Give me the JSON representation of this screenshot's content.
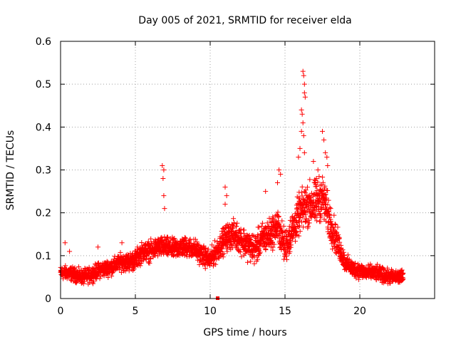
{
  "chart_data": {
    "type": "scatter",
    "title": "Day 005 of 2021, SRMTID for receiver elda",
    "xlabel": "GPS time / hours",
    "ylabel": "SRMTID / TECUs",
    "xlim": [
      0,
      25
    ],
    "ylim": [
      0,
      0.6
    ],
    "xticks": [
      0,
      5,
      10,
      15,
      20
    ],
    "yticks": [
      0,
      0.1,
      0.2,
      0.3,
      0.4,
      0.5,
      0.6
    ],
    "xtick_labels": [
      "0",
      "5",
      "10",
      "15",
      "20"
    ],
    "ytick_labels": [
      "0",
      "0.1",
      "0.2",
      "0.3",
      "0.4",
      "0.5",
      "0.6"
    ],
    "grid": true,
    "marker": "plus",
    "color": "#ff0000",
    "time_range_hours": [
      0,
      22.9
    ],
    "sample_interval_hours": 0.0083,
    "trend": [
      [
        0,
        0.06
      ],
      [
        0.5,
        0.06
      ],
      [
        1,
        0.055
      ],
      [
        1.5,
        0.05
      ],
      [
        2,
        0.055
      ],
      [
        2.5,
        0.065
      ],
      [
        3,
        0.07
      ],
      [
        3.5,
        0.075
      ],
      [
        4,
        0.085
      ],
      [
        4.5,
        0.085
      ],
      [
        5,
        0.09
      ],
      [
        5.5,
        0.11
      ],
      [
        6,
        0.11
      ],
      [
        6.5,
        0.12
      ],
      [
        7,
        0.12
      ],
      [
        7.5,
        0.115
      ],
      [
        8,
        0.12
      ],
      [
        8.5,
        0.12
      ],
      [
        9,
        0.115
      ],
      [
        9.5,
        0.1
      ],
      [
        10,
        0.09
      ],
      [
        10.5,
        0.115
      ],
      [
        11,
        0.14
      ],
      [
        11.5,
        0.15
      ],
      [
        12,
        0.14
      ],
      [
        12.5,
        0.125
      ],
      [
        13,
        0.115
      ],
      [
        13.5,
        0.14
      ],
      [
        14,
        0.15
      ],
      [
        14.5,
        0.17
      ],
      [
        15,
        0.12
      ],
      [
        15.5,
        0.16
      ],
      [
        16,
        0.2
      ],
      [
        16.5,
        0.22
      ],
      [
        17,
        0.22
      ],
      [
        17.5,
        0.24
      ],
      [
        18,
        0.18
      ],
      [
        18.5,
        0.13
      ],
      [
        19,
        0.085
      ],
      [
        19.5,
        0.07
      ],
      [
        20,
        0.065
      ],
      [
        20.5,
        0.06
      ],
      [
        21,
        0.06
      ],
      [
        21.5,
        0.055
      ],
      [
        22,
        0.05
      ],
      [
        22.5,
        0.05
      ],
      [
        22.9,
        0.05
      ]
    ],
    "spread": [
      [
        0,
        0.02
      ],
      [
        4,
        0.025
      ],
      [
        5,
        0.03
      ],
      [
        10,
        0.03
      ],
      [
        11,
        0.04
      ],
      [
        15,
        0.05
      ],
      [
        16,
        0.06
      ],
      [
        17,
        0.07
      ],
      [
        18,
        0.06
      ],
      [
        19,
        0.025
      ],
      [
        23,
        0.02
      ]
    ],
    "highlights": [
      [
        0.3,
        0.13
      ],
      [
        0.6,
        0.11
      ],
      [
        2.5,
        0.12
      ],
      [
        4.1,
        0.13
      ],
      [
        6.8,
        0.31
      ],
      [
        6.9,
        0.3
      ],
      [
        6.85,
        0.28
      ],
      [
        6.9,
        0.24
      ],
      [
        6.95,
        0.21
      ],
      [
        11.0,
        0.26
      ],
      [
        11.1,
        0.24
      ],
      [
        11.0,
        0.22
      ],
      [
        14.6,
        0.3
      ],
      [
        14.7,
        0.29
      ],
      [
        16.2,
        0.53
      ],
      [
        16.25,
        0.52
      ],
      [
        16.3,
        0.5
      ],
      [
        16.3,
        0.48
      ],
      [
        16.35,
        0.47
      ],
      [
        16.1,
        0.44
      ],
      [
        16.15,
        0.43
      ],
      [
        16.2,
        0.41
      ],
      [
        16.1,
        0.39
      ],
      [
        16.25,
        0.38
      ],
      [
        16.0,
        0.35
      ],
      [
        16.3,
        0.34
      ],
      [
        15.9,
        0.33
      ],
      [
        17.5,
        0.39
      ],
      [
        17.6,
        0.37
      ],
      [
        17.7,
        0.34
      ],
      [
        17.8,
        0.33
      ],
      [
        17.85,
        0.31
      ],
      [
        16.9,
        0.32
      ],
      [
        17.2,
        0.3
      ],
      [
        17.1,
        0.28
      ],
      [
        13.7,
        0.25
      ],
      [
        14.5,
        0.27
      ]
    ],
    "outlier_squares": [
      [
        10.5,
        0.0
      ]
    ]
  }
}
